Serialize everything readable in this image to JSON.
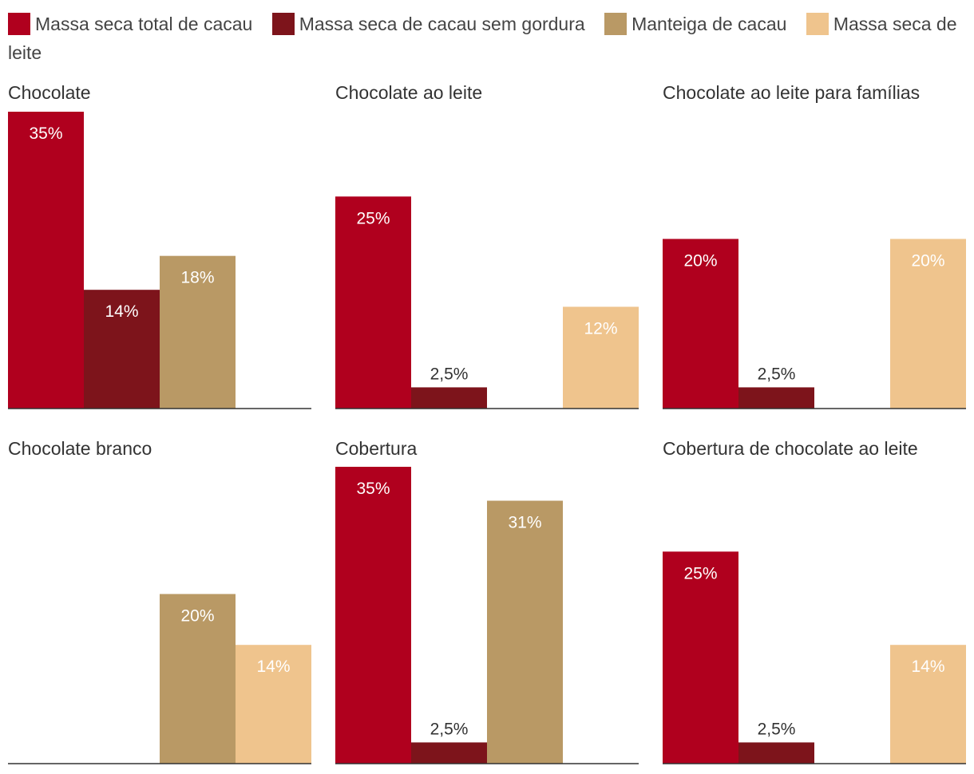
{
  "legend": [
    {
      "label": "Massa seca total de cacau",
      "color": "#b0001e"
    },
    {
      "label": "Massa seca de cacau sem gordura",
      "color": "#7d141b"
    },
    {
      "label": "Manteiga de cacau",
      "color": "#b99965"
    },
    {
      "label": "Massa seca de leite",
      "color": "#efc48d"
    }
  ],
  "chart_data": [
    {
      "type": "bar",
      "title": "Chocolate",
      "categories": [
        "Massa seca total de cacau",
        "Massa seca de cacau sem gordura",
        "Manteiga de cacau",
        "Massa seca de leite"
      ],
      "values": [
        35,
        14,
        18,
        null
      ],
      "labels": [
        "35%",
        "14%",
        "18%",
        ""
      ],
      "ylim": [
        0,
        35
      ]
    },
    {
      "type": "bar",
      "title": "Chocolate ao leite",
      "categories": [
        "Massa seca total de cacau",
        "Massa seca de cacau sem gordura",
        "Manteiga de cacau",
        "Massa seca de leite"
      ],
      "values": [
        25,
        2.5,
        null,
        12
      ],
      "labels": [
        "25%",
        "2,5%",
        "",
        "12%"
      ],
      "ylim": [
        0,
        35
      ]
    },
    {
      "type": "bar",
      "title": "Chocolate ao leite para famílias",
      "categories": [
        "Massa seca total de cacau",
        "Massa seca de cacau sem gordura",
        "Manteiga de cacau",
        "Massa seca de leite"
      ],
      "values": [
        20,
        2.5,
        null,
        20
      ],
      "labels": [
        "20%",
        "2,5%",
        "",
        "20%"
      ],
      "ylim": [
        0,
        35
      ]
    },
    {
      "type": "bar",
      "title": "Chocolate branco",
      "categories": [
        "Massa seca total de cacau",
        "Massa seca de cacau sem gordura",
        "Manteiga de cacau",
        "Massa seca de leite"
      ],
      "values": [
        null,
        null,
        20,
        14
      ],
      "labels": [
        "",
        "",
        "20%",
        "14%"
      ],
      "ylim": [
        0,
        35
      ]
    },
    {
      "type": "bar",
      "title": "Cobertura",
      "categories": [
        "Massa seca total de cacau",
        "Massa seca de cacau sem gordura",
        "Manteiga de cacau",
        "Massa seca de leite"
      ],
      "values": [
        35,
        2.5,
        31,
        null
      ],
      "labels": [
        "35%",
        "2,5%",
        "31%",
        ""
      ],
      "ylim": [
        0,
        35
      ]
    },
    {
      "type": "bar",
      "title": "Cobertura de chocolate ao leite",
      "categories": [
        "Massa seca total de cacau",
        "Massa seca de cacau sem gordura",
        "Manteiga de cacau",
        "Massa seca de leite"
      ],
      "values": [
        25,
        2.5,
        null,
        14
      ],
      "labels": [
        "25%",
        "2,5%",
        "",
        "14%"
      ],
      "ylim": [
        0,
        35
      ]
    }
  ]
}
